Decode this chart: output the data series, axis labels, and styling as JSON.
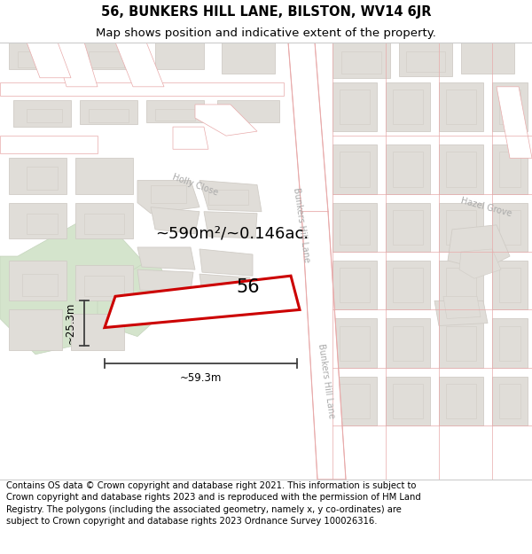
{
  "title_line1": "56, BUNKERS HILL LANE, BILSTON, WV14 6JR",
  "title_line2": "Map shows position and indicative extent of the property.",
  "footer_text": "Contains OS data © Crown copyright and database right 2021. This information is subject to Crown copyright and database rights 2023 and is reproduced with the permission of HM Land Registry. The polygons (including the associated geometry, namely x, y co-ordinates) are subject to Crown copyright and database rights 2023 Ordnance Survey 100026316.",
  "bg_color": "#f5f3f0",
  "road_fill": "#ffffff",
  "road_ec": "#e8aaaa",
  "bldg_fill": "#e0ddd8",
  "bldg_ec": "#d0ccc6",
  "green_fill": "#d4e4cc",
  "green_ec": "#c4d4bc",
  "highlight_fill": "#ffffff",
  "highlight_ec": "#cc0000",
  "area_text": "~590m²/~0.146ac.",
  "label_56": "56",
  "dim_width": "~59.3m",
  "dim_height": "~25.3m",
  "title_fontsize": 10.5,
  "subtitle_fontsize": 9.5,
  "footer_fontsize": 7.2,
  "area_fontsize": 13,
  "label_fontsize": 15,
  "road_label_color": "#aaaaaa",
  "road_label_size": 7
}
